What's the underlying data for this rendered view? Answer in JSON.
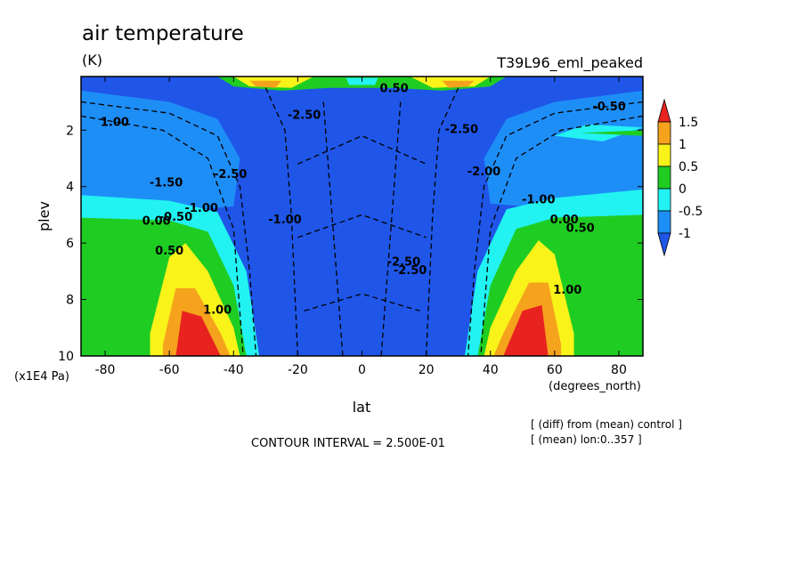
{
  "chart_data": {
    "type": "heatmap",
    "title": "air temperature",
    "units": "(K)",
    "experiment": "T39L96_eml_peaked",
    "xlabel": "lat",
    "xunits": "(degrees_north)",
    "ylabel": "plev",
    "yunits": "(x1E4 Pa)",
    "xlim": [
      -87.5,
      87.5
    ],
    "ylim": [
      0.1,
      10
    ],
    "y_inverted": true,
    "x_ticks": [
      "-80",
      "-60",
      "-40",
      "-20",
      "0",
      "20",
      "40",
      "60",
      "80"
    ],
    "x_tick_values": [
      -80,
      -60,
      -40,
      -20,
      0,
      20,
      40,
      60,
      80
    ],
    "y_ticks": [
      "2",
      "4",
      "6",
      "8",
      "10"
    ],
    "y_tick_values": [
      2,
      4,
      6,
      8,
      10
    ],
    "colorbar": {
      "labels": [
        "1.5",
        "1",
        "0.5",
        "0",
        "-0.5",
        "-1"
      ],
      "colors": [
        "#e8231f",
        "#f5a21d",
        "#f9f31a",
        "#1fcd22",
        "#22f2f2",
        "#1e8ef7",
        "#1f56e8"
      ]
    },
    "contour_interval_text": "CONTOUR INTERVAL = 2.500E-01",
    "notes": [
      "[ (diff) from (mean) control ]",
      "[ (mean) lon:0..357 ]"
    ],
    "regions": [
      {
        "level": "<-1",
        "color": "#1f56e8",
        "polygon": [
          [
            -87.5,
            0.2
          ],
          [
            87.5,
            0.2
          ],
          [
            87.5,
            10
          ],
          [
            -87.5,
            10
          ]
        ]
      },
      {
        "level": "-1..-0.5",
        "color": "#1e8ef7",
        "polygon": [
          [
            -87.5,
            0.6
          ],
          [
            -60,
            1.0
          ],
          [
            -45,
            1.6
          ],
          [
            -38,
            3.0
          ],
          [
            -40,
            4.7
          ],
          [
            -50,
            4.8
          ],
          [
            -65,
            4.9
          ],
          [
            -87.5,
            5.0
          ]
        ]
      },
      {
        "level": "-1..-0.5",
        "color": "#1e8ef7",
        "polygon": [
          [
            87.5,
            0.6
          ],
          [
            60,
            1.0
          ],
          [
            45,
            1.6
          ],
          [
            38,
            3.0
          ],
          [
            40,
            4.6
          ],
          [
            50,
            4.7
          ],
          [
            65,
            4.8
          ],
          [
            87.5,
            4.9
          ]
        ]
      },
      {
        "level": "-0.5..0",
        "color": "#22f2f2",
        "polygon": [
          [
            -87.5,
            4.3
          ],
          [
            -60,
            4.5
          ],
          [
            -45,
            4.9
          ],
          [
            -36,
            7.0
          ],
          [
            -32,
            10
          ],
          [
            -87.5,
            10
          ]
        ]
      },
      {
        "level": "-0.5..0",
        "color": "#22f2f2",
        "polygon": [
          [
            87.5,
            4.1
          ],
          [
            60,
            4.4
          ],
          [
            45,
            4.8
          ],
          [
            36,
            7.0
          ],
          [
            32,
            10
          ],
          [
            87.5,
            10
          ]
        ]
      },
      {
        "level": "-0.5..0",
        "color": "#22f2f2",
        "polygon": [
          [
            87.5,
            1.9
          ],
          [
            70,
            1.8
          ],
          [
            60,
            2.2
          ],
          [
            75,
            2.4
          ]
        ]
      },
      {
        "level": "0..0.5",
        "color": "#1fcd22",
        "polygon": [
          [
            -87.5,
            5.1
          ],
          [
            -60,
            5.2
          ],
          [
            -48,
            5.6
          ],
          [
            -40,
            7.5
          ],
          [
            -36,
            10
          ],
          [
            -87.5,
            10
          ]
        ]
      },
      {
        "level": "0..0.5",
        "color": "#1fcd22",
        "polygon": [
          [
            87.5,
            5.0
          ],
          [
            60,
            5.1
          ],
          [
            48,
            5.5
          ],
          [
            40,
            7.5
          ],
          [
            36,
            10
          ],
          [
            87.5,
            10
          ]
        ]
      },
      {
        "level": "0..0.5",
        "color": "#1fcd22",
        "polygon": [
          [
            87.5,
            2.0
          ],
          [
            68,
            2.1
          ],
          [
            87.5,
            2.2
          ]
        ]
      },
      {
        "level": "0.5..1",
        "color": "#f9f31a",
        "polygon": [
          [
            -66,
            9.2
          ],
          [
            -60,
            6.5
          ],
          [
            -55,
            6.0
          ],
          [
            -48,
            7.0
          ],
          [
            -40,
            9.0
          ],
          [
            -38,
            10
          ],
          [
            -66,
            10
          ]
        ]
      },
      {
        "level": "0.5..1",
        "color": "#f9f31a",
        "polygon": [
          [
            66,
            9.2
          ],
          [
            60,
            6.4
          ],
          [
            55,
            5.9
          ],
          [
            48,
            7.0
          ],
          [
            40,
            9.0
          ],
          [
            38,
            10
          ],
          [
            66,
            10
          ]
        ]
      },
      {
        "level": "1..1.5",
        "color": "#f5a21d",
        "polygon": [
          [
            -62,
            9.6
          ],
          [
            -58,
            7.6
          ],
          [
            -52,
            7.6
          ],
          [
            -44,
            9.2
          ],
          [
            -41,
            10
          ],
          [
            -62,
            10
          ]
        ]
      },
      {
        "level": "1..1.5",
        "color": "#f5a21d",
        "polygon": [
          [
            62,
            9.6
          ],
          [
            58,
            7.4
          ],
          [
            52,
            7.4
          ],
          [
            44,
            9.2
          ],
          [
            41,
            10
          ],
          [
            62,
            10
          ]
        ]
      },
      {
        "level": ">1.5",
        "color": "#e8231f",
        "polygon": [
          [
            -58,
            10
          ],
          [
            -56,
            8.4
          ],
          [
            -50,
            8.6
          ],
          [
            -44,
            10
          ]
        ]
      },
      {
        "level": ">1.5",
        "color": "#e8231f",
        "polygon": [
          [
            58,
            10
          ],
          [
            56,
            8.2
          ],
          [
            50,
            8.4
          ],
          [
            44,
            10
          ]
        ]
      },
      {
        "level": "top-green",
        "color": "#1fcd22",
        "polygon": [
          [
            -45,
            0.1
          ],
          [
            45,
            0.1
          ],
          [
            40,
            0.45
          ],
          [
            25,
            0.6
          ],
          [
            10,
            0.5
          ],
          [
            -10,
            0.5
          ],
          [
            -25,
            0.6
          ],
          [
            -40,
            0.45
          ]
        ]
      },
      {
        "level": "top-yellow",
        "color": "#f9f31a",
        "polygon": [
          [
            -40,
            0.1
          ],
          [
            -15,
            0.1
          ],
          [
            -22,
            0.5
          ],
          [
            -35,
            0.45
          ]
        ]
      },
      {
        "level": "top-yellow",
        "color": "#f9f31a",
        "polygon": [
          [
            15,
            0.1
          ],
          [
            40,
            0.1
          ],
          [
            35,
            0.45
          ],
          [
            22,
            0.5
          ]
        ]
      },
      {
        "level": "top-orange",
        "color": "#f5a21d",
        "polygon": [
          [
            -35,
            0.25
          ],
          [
            -25,
            0.25
          ],
          [
            -27,
            0.5
          ],
          [
            -33,
            0.45
          ]
        ]
      },
      {
        "level": "top-orange",
        "color": "#f5a21d",
        "polygon": [
          [
            25,
            0.25
          ],
          [
            35,
            0.25
          ],
          [
            33,
            0.45
          ],
          [
            27,
            0.5
          ]
        ]
      },
      {
        "level": "top-cyan",
        "color": "#22f2f2",
        "polygon": [
          [
            -5,
            0.15
          ],
          [
            5,
            0.15
          ],
          [
            4,
            0.4
          ],
          [
            -4,
            0.4
          ]
        ]
      }
    ],
    "contour_labels": [
      {
        "text": "1.00",
        "lon": -77,
        "plev": 1.85
      },
      {
        "text": "0.50",
        "lon": 10,
        "plev": 0.65
      },
      {
        "text": "-0.50",
        "lon": 77,
        "plev": 1.3
      },
      {
        "text": "-2.50",
        "lon": -18,
        "plev": 1.6
      },
      {
        "text": "-2.50",
        "lon": 31,
        "plev": 2.1
      },
      {
        "text": "-1.50",
        "lon": -61,
        "plev": 4.0
      },
      {
        "text": "-1.00",
        "lon": -50,
        "plev": 4.9
      },
      {
        "text": "-0.50",
        "lon": -58,
        "plev": 5.2
      },
      {
        "text": "0.00",
        "lon": -64,
        "plev": 5.35
      },
      {
        "text": "0.50",
        "lon": -60,
        "plev": 6.4
      },
      {
        "text": "1.00",
        "lon": -45,
        "plev": 8.5
      },
      {
        "text": "-2.50",
        "lon": -41,
        "plev": 3.7
      },
      {
        "text": "-1.00",
        "lon": -24,
        "plev": 5.3
      },
      {
        "text": "-2.50",
        "lon": 13,
        "plev": 6.8
      },
      {
        "text": "-2.50",
        "lon": 15,
        "plev": 7.1
      },
      {
        "text": "-2.00",
        "lon": 38,
        "plev": 3.6
      },
      {
        "text": "-1.00",
        "lon": 55,
        "plev": 4.6
      },
      {
        "text": "0.00",
        "lon": 63,
        "plev": 5.3
      },
      {
        "text": "0.50",
        "lon": 68,
        "plev": 5.6
      },
      {
        "text": "1.00",
        "lon": 64,
        "plev": 7.8
      }
    ]
  }
}
